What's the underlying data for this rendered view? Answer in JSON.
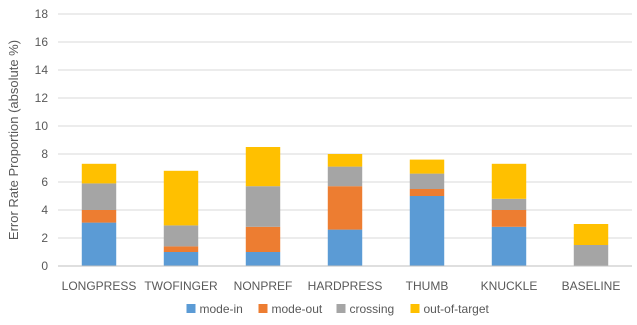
{
  "chart_data": {
    "type": "bar",
    "stacked": true,
    "title": "",
    "xlabel": "",
    "ylabel": "Error Rate Proportion (absolute %)",
    "ylim": [
      0,
      18
    ],
    "yticks": [
      0,
      2,
      4,
      6,
      8,
      10,
      12,
      14,
      16,
      18
    ],
    "grid": true,
    "legend_position": "bottom",
    "categories": [
      "LONGPRESS",
      "TWOFINGER",
      "NONPREF",
      "HARDPRESS",
      "THUMB",
      "KNUCKLE",
      "BASELINE"
    ],
    "series": [
      {
        "name": "mode-in",
        "color": "#5b9bd5",
        "values": [
          3.1,
          1.0,
          1.0,
          2.6,
          5.0,
          2.8,
          0.0
        ]
      },
      {
        "name": "mode-out",
        "color": "#ed7d31",
        "values": [
          0.9,
          0.4,
          1.8,
          3.1,
          0.5,
          1.2,
          0.0
        ]
      },
      {
        "name": "crossing",
        "color": "#a5a5a5",
        "values": [
          1.9,
          1.5,
          2.9,
          1.4,
          1.1,
          0.8,
          1.5
        ]
      },
      {
        "name": "out-of-target",
        "color": "#ffc000",
        "values": [
          1.4,
          3.9,
          2.8,
          0.9,
          1.0,
          2.5,
          1.5
        ]
      }
    ]
  }
}
